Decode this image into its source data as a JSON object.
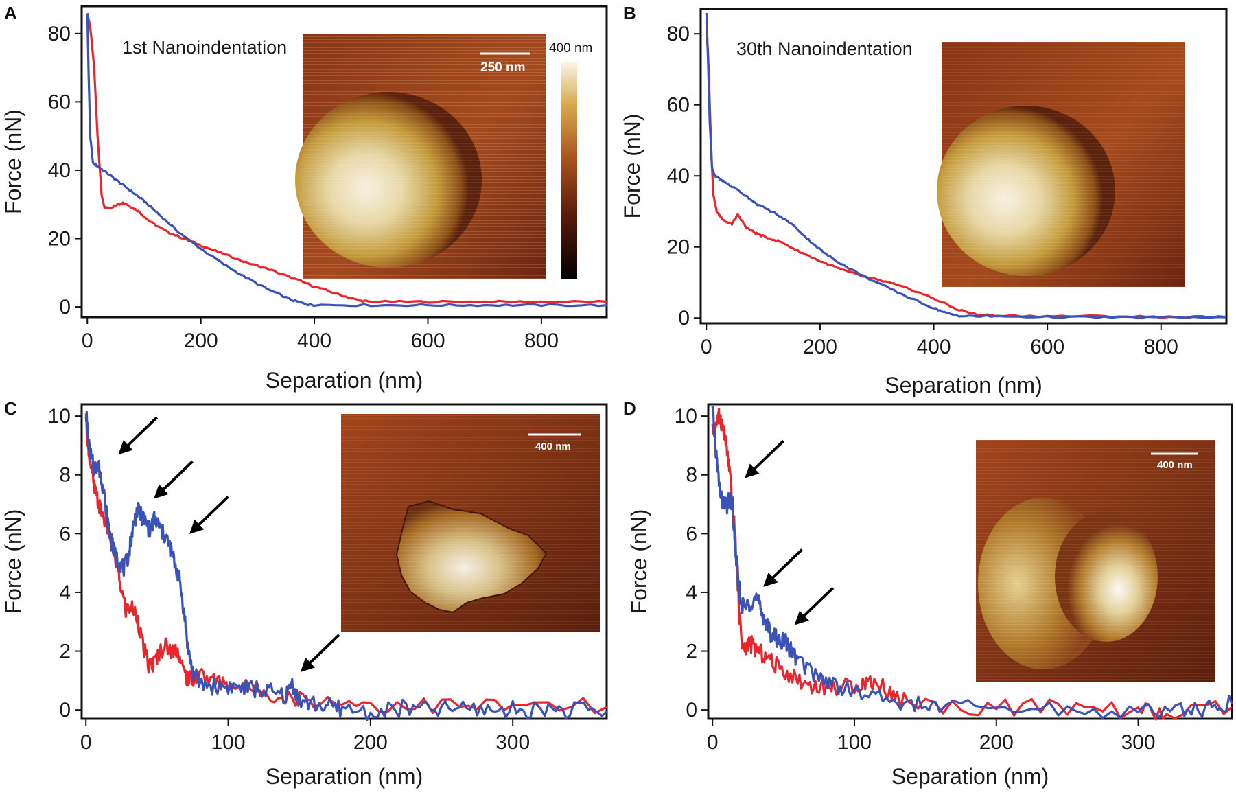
{
  "chart_data": [
    {
      "panel": "A",
      "type": "line",
      "annotation": "1st Nanoindentation",
      "xlabel": "Separation (nm)",
      "ylabel": "Force (nN)",
      "xlim": [
        -10,
        915
      ],
      "ylim": [
        -3,
        88
      ],
      "xticks": [
        "0",
        "200",
        "400",
        "600",
        "800"
      ],
      "yticks": [
        "0",
        "20",
        "40",
        "60",
        "80"
      ],
      "inset": {
        "type": "afm-image",
        "scale_bar": "250 nm",
        "colorbar_label": "400 nm",
        "shape": "dome"
      },
      "series": [
        {
          "name": "red",
          "color": "#e8262b",
          "x": [
            0,
            5,
            12,
            18,
            25,
            30,
            40,
            55,
            65,
            75,
            90,
            110,
            140,
            170,
            200,
            240,
            280,
            320,
            360,
            400,
            440,
            480,
            500,
            600,
            700,
            800,
            915
          ],
          "y": [
            86,
            82,
            70,
            50,
            33,
            29,
            29,
            30,
            30.5,
            29.5,
            28,
            25,
            22,
            20,
            18,
            15.5,
            13,
            11,
            8.5,
            6,
            3.8,
            1.8,
            1.5,
            1.5,
            1.5,
            1.5,
            1.5
          ]
        },
        {
          "name": "blue",
          "color": "#3b53b6",
          "x": [
            0,
            2,
            5,
            10,
            20,
            40,
            60,
            80,
            100,
            130,
            160,
            200,
            240,
            280,
            320,
            360,
            385,
            400,
            500,
            600,
            700,
            800,
            915
          ],
          "y": [
            86,
            70,
            50,
            42,
            41,
            38.5,
            36,
            33.5,
            31,
            26.5,
            22,
            17,
            12.5,
            8.5,
            5,
            2,
            0.8,
            0.6,
            0.5,
            0.5,
            0.5,
            0.5,
            0.5
          ]
        }
      ]
    },
    {
      "panel": "B",
      "type": "line",
      "annotation": "30th Nanoindentation",
      "xlabel": "Separation (nm)",
      "ylabel": "Force (nN)",
      "xlim": [
        -10,
        915
      ],
      "ylim": [
        -1.5,
        87
      ],
      "xticks": [
        "0",
        "200",
        "400",
        "600",
        "800"
      ],
      "yticks": [
        "0",
        "20",
        "40",
        "60",
        "80"
      ],
      "inset": {
        "type": "afm-image",
        "shape": "dome"
      },
      "series": [
        {
          "name": "red",
          "color": "#e8262b",
          "x": [
            0,
            4,
            8,
            12,
            18,
            25,
            35,
            45,
            55,
            62,
            70,
            85,
            100,
            130,
            160,
            200,
            240,
            280,
            320,
            360,
            400,
            440,
            480,
            600,
            700,
            800,
            915
          ],
          "y": [
            84,
            70,
            50,
            35,
            30,
            28.5,
            27,
            26.5,
            29,
            27.5,
            25.5,
            24,
            23,
            21.5,
            19,
            16,
            13.5,
            11.5,
            10,
            8,
            5.5,
            2.5,
            0.8,
            0.5,
            0.5,
            0.3,
            0.3
          ]
        },
        {
          "name": "blue",
          "color": "#3b53b6",
          "x": [
            0,
            3,
            6,
            10,
            15,
            30,
            60,
            90,
            120,
            150,
            180,
            210,
            240,
            280,
            320,
            360,
            400,
            430,
            450,
            500,
            600,
            700,
            800,
            915
          ],
          "y": [
            86,
            72,
            55,
            42,
            40,
            38.5,
            35.5,
            32,
            29.5,
            26.5,
            22,
            18,
            15,
            11.5,
            8.5,
            5.5,
            2.8,
            1,
            0.5,
            0.5,
            0.3,
            0.2,
            0.2,
            0.2
          ]
        }
      ]
    },
    {
      "panel": "C",
      "type": "line",
      "xlabel": "Separation (nm)",
      "ylabel": "Force (nN)",
      "xlim": [
        -3,
        366
      ],
      "ylim": [
        -0.3,
        10.4
      ],
      "xticks": [
        "0",
        "100",
        "200",
        "300"
      ],
      "yticks": [
        "0",
        "2",
        "4",
        "6",
        "8",
        "10"
      ],
      "inset": {
        "type": "afm-image",
        "scale_bar": "400 nm",
        "shape": "flake"
      },
      "arrows": [
        {
          "x": 20,
          "y": 8.6
        },
        {
          "x": 45,
          "y": 7.1
        },
        {
          "x": 70,
          "y": 5.9
        },
        {
          "x": 148,
          "y": 1.2
        }
      ],
      "series": [
        {
          "name": "red",
          "color": "#e8262b",
          "x": [
            0,
            3,
            6,
            9,
            12,
            16,
            20,
            24,
            28,
            32,
            36,
            40,
            44,
            48,
            52,
            56,
            60,
            64,
            68,
            72,
            76,
            80,
            90,
            100,
            120,
            140,
            160,
            200,
            250,
            300,
            366
          ],
          "y": [
            9.8,
            8.4,
            7.5,
            7.0,
            6.6,
            6.1,
            5.3,
            4.3,
            3.4,
            3.5,
            3.2,
            2.2,
            1.5,
            1.6,
            2.0,
            2.2,
            2.0,
            2.1,
            1.4,
            1.0,
            1.1,
            1.2,
            1.0,
            0.9,
            0.7,
            0.45,
            0.35,
            0.2,
            0.15,
            0.12,
            0.1
          ]
        },
        {
          "name": "blue",
          "color": "#3b53b6",
          "x": [
            0,
            2,
            4,
            6,
            8,
            10,
            12,
            15,
            18,
            21,
            24,
            27,
            30,
            33,
            36,
            39,
            42,
            45,
            48,
            51,
            54,
            57,
            60,
            63,
            66,
            69,
            72,
            75,
            80,
            90,
            100,
            110,
            120,
            130,
            140,
            145,
            150,
            160,
            170,
            180,
            200,
            220,
            240,
            260,
            280,
            300,
            320,
            340,
            366
          ],
          "y": [
            10.2,
            9.0,
            8.5,
            8.2,
            8.4,
            8.1,
            7.6,
            6.5,
            5.7,
            5.2,
            5.0,
            4.8,
            5.3,
            6.2,
            6.8,
            6.6,
            6.4,
            6.1,
            6.5,
            6.3,
            6.0,
            5.8,
            5.4,
            4.9,
            4.4,
            3.3,
            2.0,
            1.3,
            0.9,
            0.8,
            0.8,
            0.75,
            0.7,
            0.6,
            0.45,
            0.9,
            0.3,
            0.2,
            0.1,
            0.05,
            -0.1,
            0.05,
            0.0,
            0.05,
            0.02,
            0.0,
            0.05,
            0.0,
            -0.05
          ]
        }
      ]
    },
    {
      "panel": "D",
      "type": "line",
      "xlabel": "Separation (nm)",
      "ylabel": "Force (nN)",
      "xlim": [
        -3,
        366
      ],
      "ylim": [
        -0.3,
        10.4
      ],
      "xticks": [
        "0",
        "100",
        "200",
        "300"
      ],
      "yticks": [
        "0",
        "2",
        "4",
        "6",
        "8",
        "10"
      ],
      "inset": {
        "type": "afm-image",
        "scale_bar": "400 nm",
        "shape": "dome-double"
      },
      "arrows": [
        {
          "x": 20,
          "y": 7.8
        },
        {
          "x": 33,
          "y": 4.1
        },
        {
          "x": 55,
          "y": 2.8
        }
      ],
      "series": [
        {
          "name": "red",
          "color": "#e8262b",
          "x": [
            0,
            3,
            5,
            7,
            9,
            11,
            13,
            15,
            17,
            19,
            21,
            23,
            25,
            28,
            32,
            38,
            45,
            55,
            65,
            75,
            85,
            95,
            105,
            112,
            120,
            130,
            150,
            200,
            250,
            300,
            320,
            366
          ],
          "y": [
            9.5,
            9.8,
            10.0,
            9.7,
            9.2,
            8.5,
            7.6,
            6.5,
            5.0,
            3.2,
            2.2,
            2.0,
            2.3,
            2.2,
            2.0,
            1.8,
            1.5,
            1.2,
            0.9,
            0.8,
            0.75,
            0.8,
            0.9,
            1.0,
            0.8,
            0.4,
            0.15,
            0.1,
            0.05,
            0.0,
            -0.2,
            0.1
          ]
        },
        {
          "name": "blue",
          "color": "#3b53b6",
          "x": [
            0,
            2,
            4,
            6,
            8,
            10,
            12,
            14,
            16,
            18,
            20,
            23,
            26,
            29,
            32,
            35,
            38,
            41,
            44,
            47,
            50,
            53,
            56,
            60,
            70,
            80,
            90,
            100,
            120,
            140,
            160,
            200,
            250,
            300,
            330,
            350,
            366
          ],
          "y": [
            10.2,
            9.0,
            8.0,
            7.2,
            7.0,
            6.9,
            7.2,
            7.0,
            5.5,
            4.5,
            3.6,
            3.5,
            3.6,
            3.8,
            3.7,
            3.3,
            2.9,
            2.6,
            2.5,
            2.3,
            2.4,
            2.2,
            2.0,
            1.7,
            1.3,
            1.0,
            0.8,
            0.6,
            0.4,
            0.2,
            0.1,
            0.05,
            0.0,
            -0.05,
            0.0,
            0.05,
            0.2
          ]
        }
      ]
    }
  ]
}
